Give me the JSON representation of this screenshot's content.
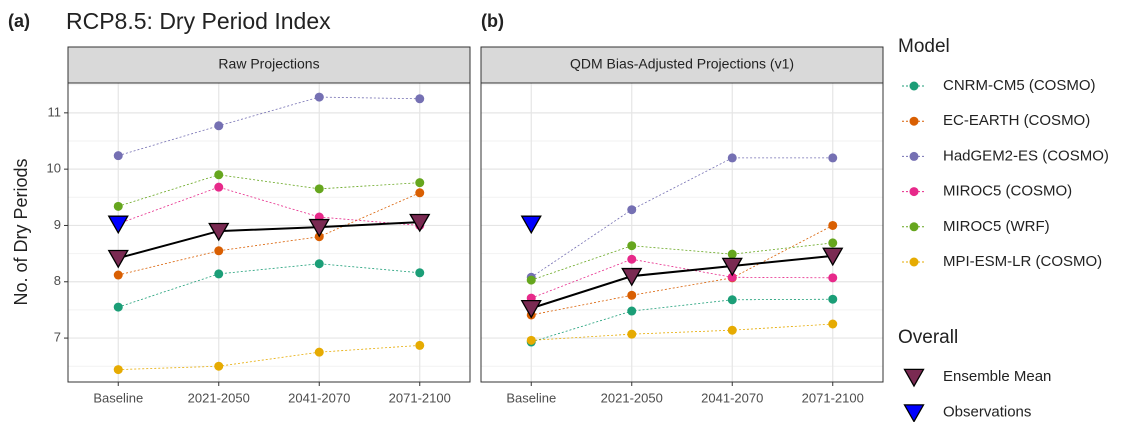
{
  "chart_data": [
    {
      "type": "line",
      "panel_label": "(a)",
      "title": "RCP8.5: Dry Period Index",
      "subtitle": "Raw Projections",
      "ylabel": "No. of Dry Periods",
      "legend_title": "Model",
      "legend_title_2": "Overall",
      "categories": [
        "Baseline",
        "2021-2050",
        "2041-2070",
        "2071-2100"
      ],
      "ylim": [
        6.22,
        11.53
      ],
      "yticks": [
        7,
        8,
        9,
        10,
        11
      ],
      "yticks_minor": [
        6.5,
        7.5,
        8.5,
        9.5,
        10.5,
        11.5
      ],
      "grid": true,
      "series": [
        {
          "name": "CNRM-CM5 (COSMO)",
          "color": "#1b9e77",
          "marker": "circle",
          "values": [
            7.55,
            8.14,
            8.32,
            8.16
          ]
        },
        {
          "name": "EC-EARTH (COSMO)",
          "color": "#d95f02",
          "marker": "circle",
          "values": [
            8.12,
            8.55,
            8.8,
            9.58
          ]
        },
        {
          "name": "HadGEM2-ES (COSMO)",
          "color": "#7570b3",
          "marker": "circle",
          "values": [
            10.24,
            10.77,
            11.28,
            11.25
          ]
        },
        {
          "name": "MIROC5 (COSMO)",
          "color": "#e7298a",
          "marker": "circle",
          "values": [
            9.03,
            9.68,
            9.15,
            9.0
          ]
        },
        {
          "name": "MIROC5 (WRF)",
          "color": "#66a61e",
          "marker": "circle",
          "values": [
            9.34,
            9.9,
            9.65,
            9.76
          ]
        },
        {
          "name": "MPI-ESM-LR (COSMO)",
          "color": "#e6ab02",
          "marker": "circle",
          "values": [
            6.44,
            6.5,
            6.75,
            6.87
          ]
        },
        {
          "name": "Ensemble Mean",
          "color": "#7a2a52",
          "marker": "triangle",
          "values": [
            8.42,
            8.9,
            8.97,
            9.06
          ]
        },
        {
          "name": "Observations",
          "color": "#0000ff",
          "marker": "triangle",
          "values": [
            9.03,
            null,
            null,
            null
          ]
        }
      ]
    },
    {
      "type": "line",
      "panel_label": "(b)",
      "subtitle": "QDM Bias-Adjusted Projections (v1)",
      "categories": [
        "Baseline",
        "2021-2050",
        "2041-2070",
        "2071-2100"
      ],
      "ylim": [
        6.22,
        11.53
      ],
      "yticks": [
        7,
        8,
        9,
        10,
        11
      ],
      "yticks_minor": [
        6.5,
        7.5,
        8.5,
        9.5,
        10.5,
        11.5
      ],
      "grid": true,
      "series": [
        {
          "values": [
            6.93,
            7.48,
            7.68,
            7.69
          ]
        },
        {
          "values": [
            7.41,
            7.76,
            8.07,
            9.0
          ]
        },
        {
          "values": [
            8.08,
            9.28,
            10.2,
            10.2
          ]
        },
        {
          "values": [
            7.71,
            8.4,
            8.08,
            8.07
          ]
        },
        {
          "values": [
            8.03,
            8.64,
            8.49,
            8.69
          ]
        },
        {
          "values": [
            6.96,
            7.07,
            7.14,
            7.25
          ]
        },
        {
          "values": [
            7.53,
            8.1,
            8.28,
            8.46
          ]
        },
        {
          "values": [
            9.03,
            null,
            null,
            null
          ]
        }
      ]
    }
  ]
}
